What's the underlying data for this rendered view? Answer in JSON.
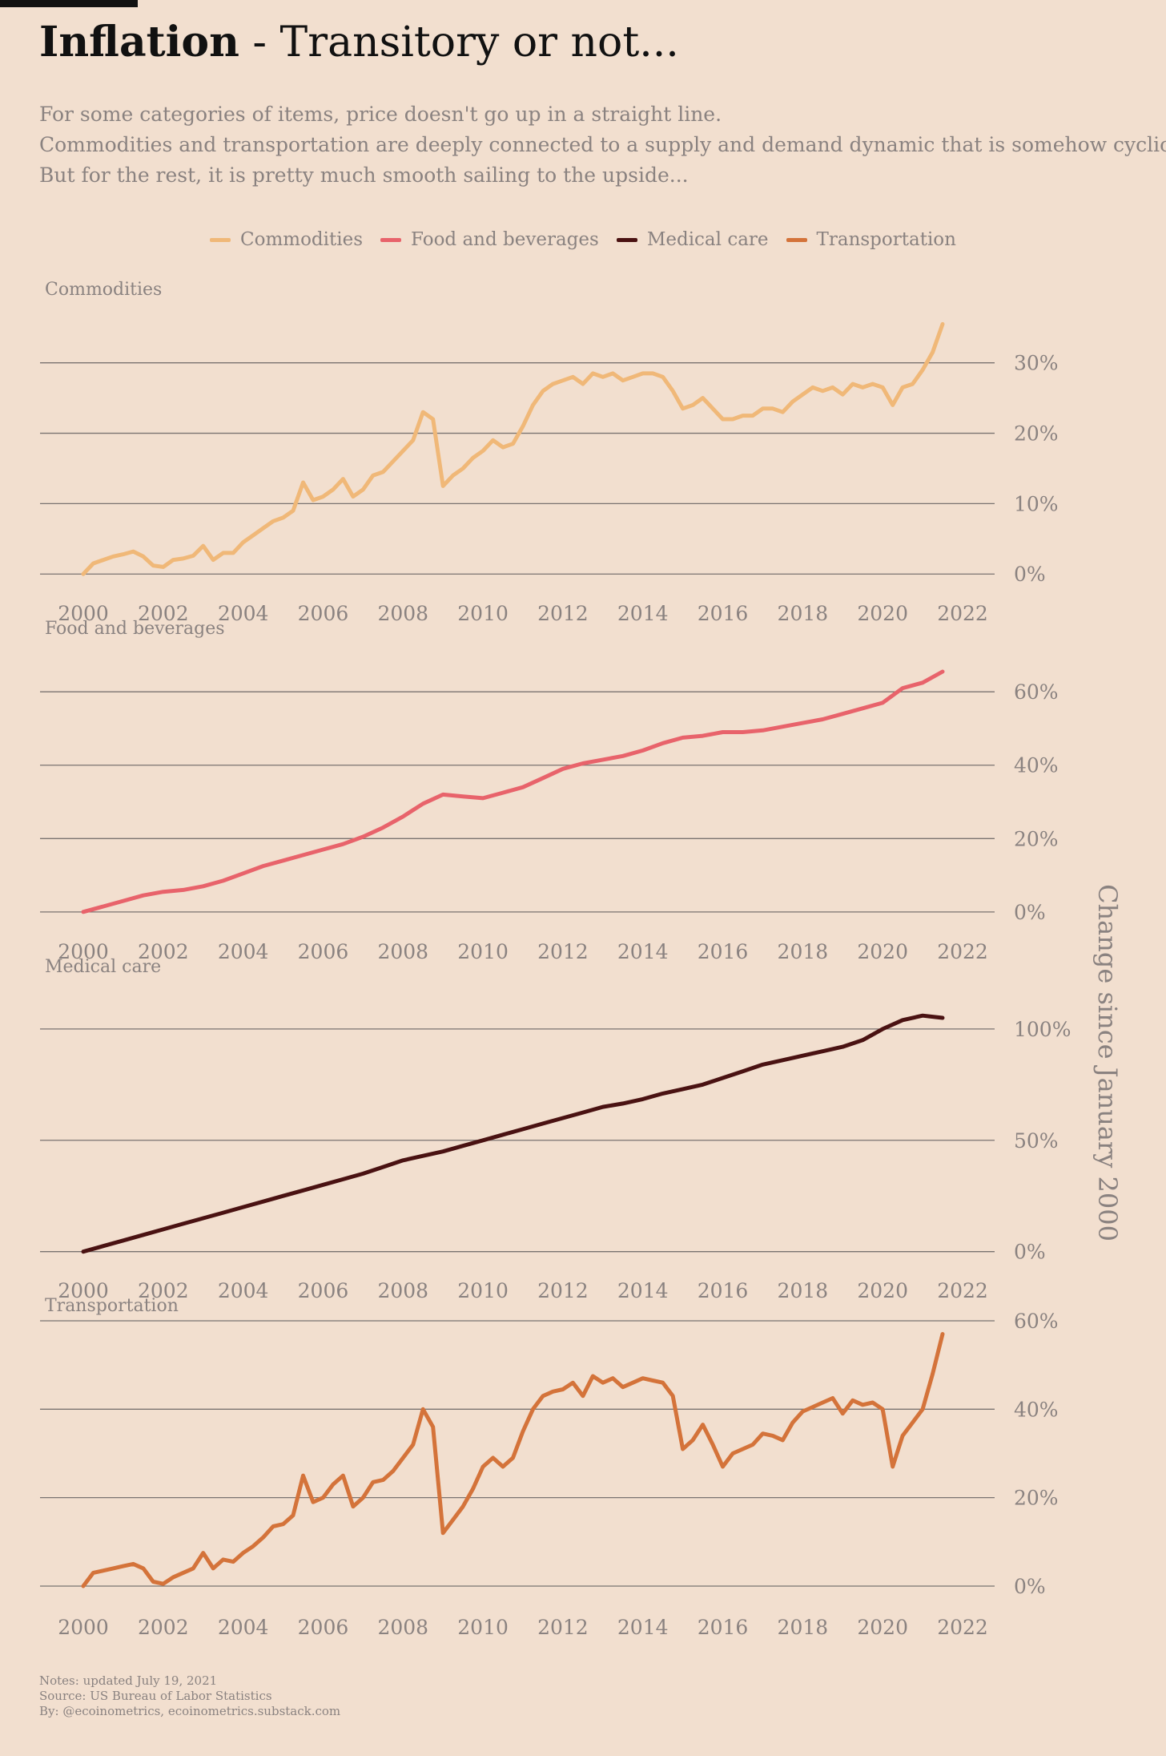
{
  "header": {
    "title_bold": "Inflation",
    "title_rest": " - Transitory or not...",
    "subtitle_lines": [
      "For some categories of items, price doesn't go up in a straight line.",
      "Commodities and transportation are deeply connected to a supply and demand dynamic that is somehow cyclical.",
      "But for the rest, it is pretty much smooth sailing to the upside..."
    ]
  },
  "legend": [
    {
      "label": "Commodities",
      "color": "#f0b878"
    },
    {
      "label": "Food and beverages",
      "color": "#e8636b"
    },
    {
      "label": "Medical care",
      "color": "#4a1212"
    },
    {
      "label": "Transportation",
      "color": "#d4733a"
    }
  ],
  "y_axis_label": "Change since January 2000",
  "notes": [
    "Notes: updated July 19, 2021",
    "Source: US Bureau of Labor Statistics",
    "By: @ecoinometrics, ecoinometrics.substack.com"
  ],
  "chart_data": [
    {
      "type": "line",
      "title": "Commodities",
      "color": "#f0b878",
      "ylim": [
        -1,
        36
      ],
      "yticks": [
        0,
        10,
        20,
        30
      ],
      "xticks": [
        2000,
        2002,
        2004,
        2006,
        2008,
        2010,
        2012,
        2014,
        2016,
        2018,
        2020,
        2022
      ],
      "x": [
        2000.0,
        2000.25,
        2000.5,
        2000.75,
        2001.0,
        2001.25,
        2001.5,
        2001.75,
        2002.0,
        2002.25,
        2002.5,
        2002.75,
        2003.0,
        2003.25,
        2003.5,
        2003.75,
        2004.0,
        2004.25,
        2004.5,
        2004.75,
        2005.0,
        2005.25,
        2005.5,
        2005.75,
        2006.0,
        2006.25,
        2006.5,
        2006.75,
        2007.0,
        2007.25,
        2007.5,
        2007.75,
        2008.0,
        2008.25,
        2008.5,
        2008.75,
        2009.0,
        2009.25,
        2009.5,
        2009.75,
        2010.0,
        2010.25,
        2010.5,
        2010.75,
        2011.0,
        2011.25,
        2011.5,
        2011.75,
        2012.0,
        2012.25,
        2012.5,
        2012.75,
        2013.0,
        2013.25,
        2013.5,
        2013.75,
        2014.0,
        2014.25,
        2014.5,
        2014.75,
        2015.0,
        2015.25,
        2015.5,
        2015.75,
        2016.0,
        2016.25,
        2016.5,
        2016.75,
        2017.0,
        2017.25,
        2017.5,
        2017.75,
        2018.0,
        2018.25,
        2018.5,
        2018.75,
        2019.0,
        2019.25,
        2019.5,
        2019.75,
        2020.0,
        2020.25,
        2020.5,
        2020.75,
        2021.0,
        2021.25,
        2021.5
      ],
      "values": [
        0.0,
        1.5,
        2.0,
        2.5,
        2.8,
        3.2,
        2.5,
        1.2,
        1.0,
        2.0,
        2.2,
        2.6,
        4.0,
        2.0,
        3.0,
        3.0,
        4.5,
        5.5,
        6.5,
        7.5,
        8.0,
        9.0,
        13.0,
        10.5,
        11.0,
        12.0,
        13.5,
        11.0,
        12.0,
        14.0,
        14.5,
        16.0,
        17.5,
        19.0,
        23.0,
        22.0,
        12.5,
        14.0,
        15.0,
        16.5,
        17.5,
        19.0,
        18.0,
        18.5,
        21.0,
        24.0,
        26.0,
        27.0,
        27.5,
        28.0,
        27.0,
        28.5,
        28.0,
        28.5,
        27.5,
        28.0,
        28.5,
        28.5,
        28.0,
        26.0,
        23.5,
        24.0,
        25.0,
        23.5,
        22.0,
        22.0,
        22.5,
        22.5,
        23.5,
        23.5,
        23.0,
        24.5,
        25.5,
        26.5,
        26.0,
        26.5,
        25.5,
        27.0,
        26.5,
        27.0,
        26.5,
        24.0,
        26.5,
        27.0,
        29.0,
        31.5,
        35.5
      ]
    },
    {
      "type": "line",
      "title": "Food and beverages",
      "color": "#e8636b",
      "ylim": [
        -2,
        69
      ],
      "yticks": [
        0,
        20,
        40,
        60
      ],
      "xticks": [
        2000,
        2002,
        2004,
        2006,
        2008,
        2010,
        2012,
        2014,
        2016,
        2018,
        2020,
        2022
      ],
      "x": [
        2000.0,
        2000.5,
        2001.0,
        2001.5,
        2002.0,
        2002.5,
        2003.0,
        2003.5,
        2004.0,
        2004.5,
        2005.0,
        2005.5,
        2006.0,
        2006.5,
        2007.0,
        2007.5,
        2008.0,
        2008.5,
        2009.0,
        2009.5,
        2010.0,
        2010.5,
        2011.0,
        2011.5,
        2012.0,
        2012.5,
        2013.0,
        2013.5,
        2014.0,
        2014.5,
        2015.0,
        2015.5,
        2016.0,
        2016.5,
        2017.0,
        2017.5,
        2018.0,
        2018.5,
        2019.0,
        2019.5,
        2020.0,
        2020.5,
        2021.0,
        2021.5
      ],
      "values": [
        0.0,
        1.5,
        3.0,
        4.5,
        5.5,
        6.0,
        7.0,
        8.5,
        10.5,
        12.5,
        14.0,
        15.5,
        17.0,
        18.5,
        20.5,
        23.0,
        26.0,
        29.5,
        32.0,
        31.5,
        31.0,
        32.5,
        34.0,
        36.5,
        39.0,
        40.5,
        41.5,
        42.5,
        44.0,
        46.0,
        47.5,
        48.0,
        49.0,
        49.0,
        49.5,
        50.5,
        51.5,
        52.5,
        54.0,
        55.5,
        57.0,
        61.0,
        62.5,
        65.5
      ]
    },
    {
      "type": "line",
      "title": "Medical care",
      "color": "#4a1212",
      "ylim": [
        -3,
        114
      ],
      "yticks": [
        0,
        50,
        100
      ],
      "xticks": [
        2000,
        2002,
        2004,
        2006,
        2008,
        2010,
        2012,
        2014,
        2016,
        2018,
        2020,
        2022
      ],
      "x": [
        2000.0,
        2000.5,
        2001.0,
        2001.5,
        2002.0,
        2002.5,
        2003.0,
        2003.5,
        2004.0,
        2004.5,
        2005.0,
        2005.5,
        2006.0,
        2006.5,
        2007.0,
        2007.5,
        2008.0,
        2008.5,
        2009.0,
        2009.5,
        2010.0,
        2010.5,
        2011.0,
        2011.5,
        2012.0,
        2012.5,
        2013.0,
        2013.5,
        2014.0,
        2014.5,
        2015.0,
        2015.5,
        2016.0,
        2016.5,
        2017.0,
        2017.5,
        2018.0,
        2018.5,
        2019.0,
        2019.5,
        2020.0,
        2020.5,
        2021.0,
        2021.5
      ],
      "values": [
        0.0,
        2.5,
        5.0,
        7.5,
        10.0,
        12.5,
        15.0,
        17.5,
        20.0,
        22.5,
        25.0,
        27.5,
        30.0,
        32.5,
        35.0,
        38.0,
        41.0,
        43.0,
        45.0,
        47.5,
        50.0,
        52.5,
        55.0,
        57.5,
        60.0,
        62.5,
        65.0,
        66.5,
        68.5,
        71.0,
        73.0,
        75.0,
        78.0,
        81.0,
        84.0,
        86.0,
        88.0,
        90.0,
        92.0,
        95.0,
        100.0,
        104.0,
        106.0,
        105.0
      ]
    },
    {
      "type": "line",
      "title": "Transportation",
      "color": "#d4733a",
      "ylim": [
        -2,
        60
      ],
      "yticks": [
        0,
        20,
        40,
        60
      ],
      "xticks": [
        2000,
        2002,
        2004,
        2006,
        2008,
        2010,
        2012,
        2014,
        2016,
        2018,
        2020,
        2022
      ],
      "x": [
        2000.0,
        2000.25,
        2000.5,
        2000.75,
        2001.0,
        2001.25,
        2001.5,
        2001.75,
        2002.0,
        2002.25,
        2002.5,
        2002.75,
        2003.0,
        2003.25,
        2003.5,
        2003.75,
        2004.0,
        2004.25,
        2004.5,
        2004.75,
        2005.0,
        2005.25,
        2005.5,
        2005.75,
        2006.0,
        2006.25,
        2006.5,
        2006.75,
        2007.0,
        2007.25,
        2007.5,
        2007.75,
        2008.0,
        2008.25,
        2008.5,
        2008.75,
        2009.0,
        2009.25,
        2009.5,
        2009.75,
        2010.0,
        2010.25,
        2010.5,
        2010.75,
        2011.0,
        2011.25,
        2011.5,
        2011.75,
        2012.0,
        2012.25,
        2012.5,
        2012.75,
        2013.0,
        2013.25,
        2013.5,
        2013.75,
        2014.0,
        2014.25,
        2014.5,
        2014.75,
        2015.0,
        2015.25,
        2015.5,
        2015.75,
        2016.0,
        2016.25,
        2016.5,
        2016.75,
        2017.0,
        2017.25,
        2017.5,
        2017.75,
        2018.0,
        2018.25,
        2018.5,
        2018.75,
        2019.0,
        2019.25,
        2019.5,
        2019.75,
        2020.0,
        2020.25,
        2020.5,
        2020.75,
        2021.0,
        2021.25,
        2021.5
      ],
      "values": [
        0.0,
        3.0,
        3.5,
        4.0,
        4.5,
        5.0,
        4.0,
        1.0,
        0.5,
        2.0,
        3.0,
        4.0,
        7.5,
        4.0,
        6.0,
        5.5,
        7.5,
        9.0,
        11.0,
        13.5,
        14.0,
        16.0,
        25.0,
        19.0,
        20.0,
        23.0,
        25.0,
        18.0,
        20.0,
        23.5,
        24.0,
        26.0,
        29.0,
        32.0,
        40.0,
        36.0,
        12.0,
        15.0,
        18.0,
        22.0,
        27.0,
        29.0,
        27.0,
        29.0,
        35.0,
        40.0,
        43.0,
        44.0,
        44.5,
        46.0,
        43.0,
        47.5,
        46.0,
        47.0,
        45.0,
        46.0,
        47.0,
        46.5,
        46.0,
        43.0,
        31.0,
        33.0,
        36.5,
        32.0,
        27.0,
        30.0,
        31.0,
        32.0,
        34.5,
        34.0,
        33.0,
        37.0,
        39.5,
        40.5,
        41.5,
        42.5,
        39.0,
        42.0,
        41.0,
        41.5,
        40.0,
        27.0,
        34.0,
        37.0,
        40.0,
        48.0,
        57.0
      ]
    }
  ]
}
